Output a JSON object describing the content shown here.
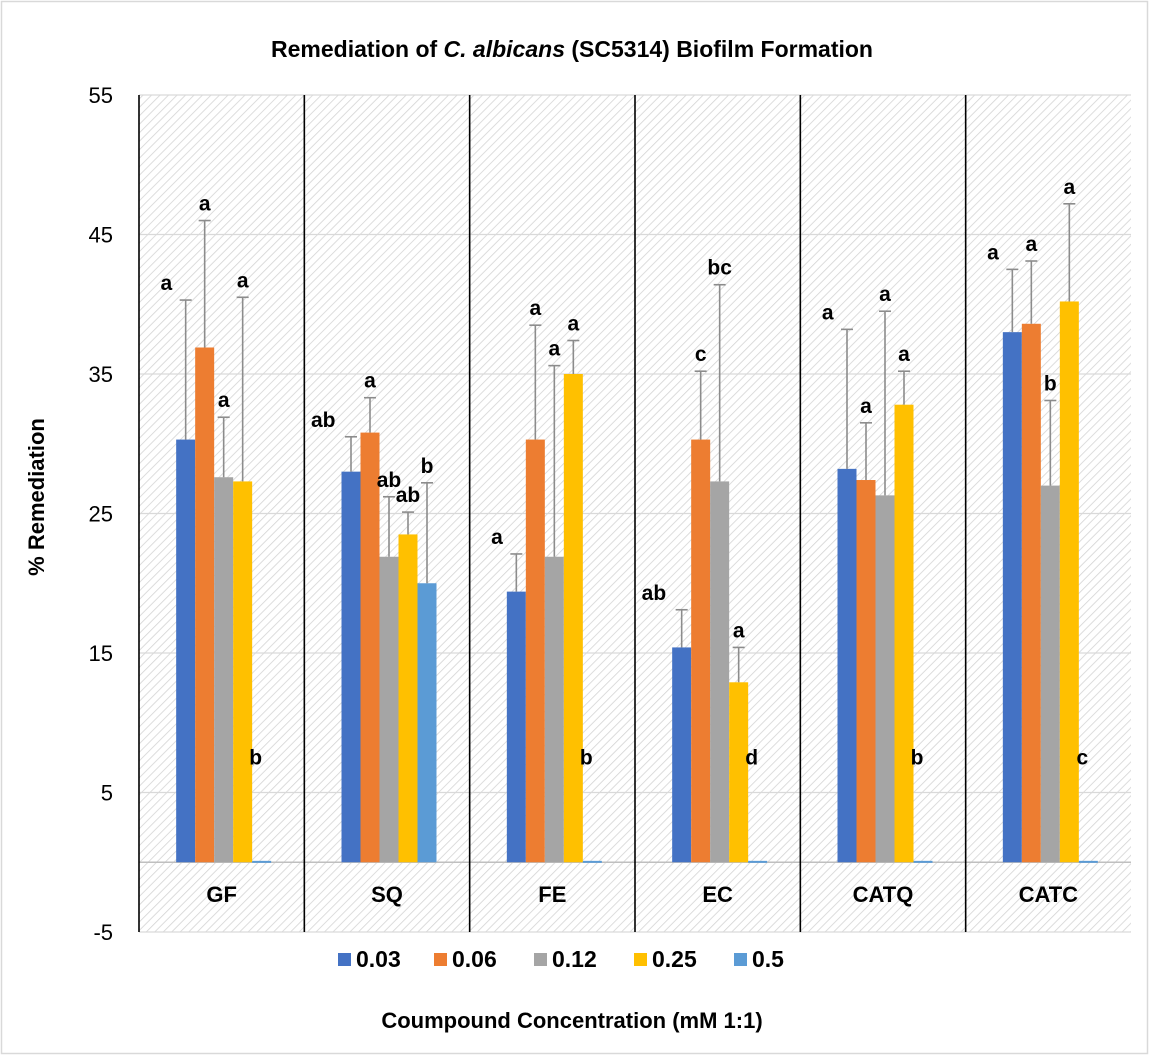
{
  "chart_data": {
    "type": "bar",
    "title": {
      "prefix": "Remediation of ",
      "italic": "C. albicans",
      "suffix": " (SC5314) Biofilm Formation"
    },
    "xlabel": "Coumpound Concentration (mM 1:1)",
    "ylabel": "% Remediation",
    "ylim": [
      -5,
      55
    ],
    "yticks": [
      55,
      45,
      35,
      25,
      15,
      5,
      -5
    ],
    "grid": true,
    "legend_position": "bottom",
    "categories": [
      "GF",
      "SQ",
      "FE",
      "EC",
      "CATQ",
      "CATC"
    ],
    "series": [
      {
        "name": "0.03",
        "color": "#4472C4",
        "values": [
          30.3,
          28.0,
          19.4,
          15.4,
          28.2,
          38.0
        ],
        "errors": [
          10.0,
          2.5,
          2.7,
          2.7,
          10.0,
          4.5
        ],
        "labels": [
          "a",
          "ab",
          "a",
          "ab",
          "a",
          "a"
        ]
      },
      {
        "name": "0.06",
        "color": "#ED7D31",
        "values": [
          36.9,
          30.8,
          30.3,
          30.3,
          27.4,
          38.6
        ],
        "errors": [
          9.1,
          2.5,
          8.2,
          4.9,
          4.1,
          4.5
        ],
        "labels": [
          "a",
          "a",
          "a",
          "c",
          "a",
          "a"
        ]
      },
      {
        "name": "0.12",
        "color": "#A5A5A5",
        "values": [
          27.6,
          21.9,
          21.9,
          27.3,
          26.3,
          27.0
        ],
        "errors": [
          4.3,
          4.3,
          13.7,
          14.1,
          13.2,
          6.1
        ],
        "labels": [
          "a",
          "ab",
          "a",
          "bc",
          "a",
          "b"
        ]
      },
      {
        "name": "0.25",
        "color": "#FFC000",
        "values": [
          27.3,
          23.5,
          35.0,
          12.9,
          32.8,
          40.2
        ],
        "errors": [
          13.2,
          1.6,
          2.4,
          2.5,
          2.4,
          7.0
        ],
        "labels": [
          "a",
          "ab",
          "a",
          "a",
          "a",
          "a"
        ]
      },
      {
        "name": "0.5",
        "color": "#5B9BD5",
        "values": [
          0.1,
          20.0,
          0.1,
          0.1,
          0.1,
          0.1
        ],
        "errors": [
          0,
          7.2,
          0,
          0,
          0,
          0
        ],
        "labels": [
          "b",
          "b",
          "b",
          "d",
          "b",
          "c"
        ]
      }
    ]
  }
}
